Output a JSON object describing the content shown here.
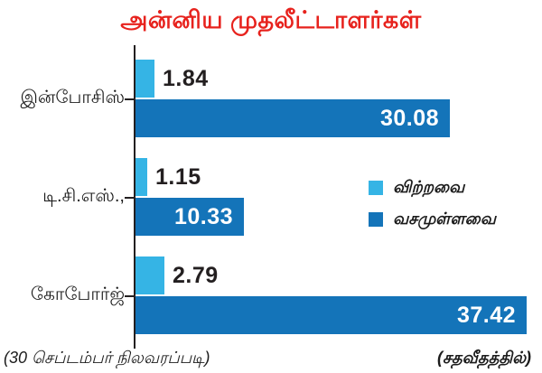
{
  "chart_data": {
    "type": "bar",
    "orientation": "horizontal",
    "title": "அன்னிய முதலீட்டாளர்கள்",
    "title_color": "#e7221d",
    "categories": [
      "இன்போசிஸ்",
      "டி.சி.எஸ்.,",
      "கோபோர்ஜ்"
    ],
    "series": [
      {
        "name": "விற்றவை",
        "color": "#35b4e5",
        "values": [
          1.84,
          1.15,
          2.79
        ],
        "labels": [
          "1.84",
          "1.15",
          "2.79"
        ]
      },
      {
        "name": "வசமுள்ளவை",
        "color": "#1474b9",
        "values": [
          30.08,
          10.33,
          37.42
        ],
        "labels": [
          "30.08",
          "10.33",
          "37.42"
        ]
      }
    ],
    "xlim": [
      0,
      39
    ],
    "grid": false,
    "legend_position": "center-right",
    "axis_color": "#231f20",
    "value_label_color_outside": "#231f20",
    "value_label_color_inside": "#ffffff"
  },
  "footnotes": {
    "left": "(30 செப்டம்பர் நிலவரப்படி)",
    "right": "(சதவீதத்தில்)"
  }
}
